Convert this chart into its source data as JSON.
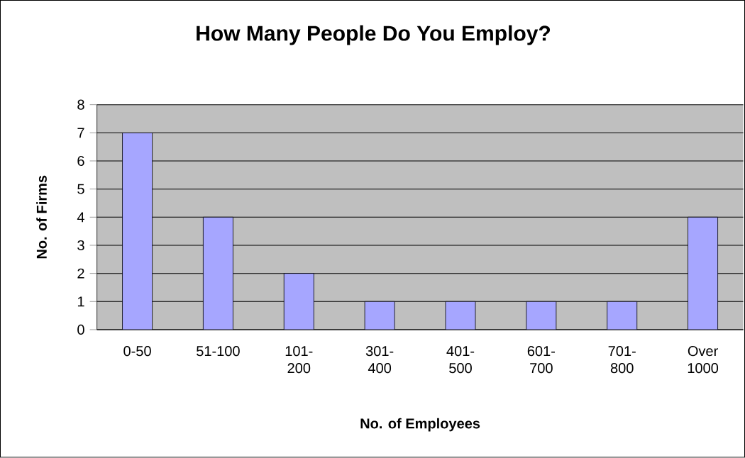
{
  "chart_data": {
    "type": "bar",
    "title": "How Many People Do You Employ?",
    "xlabel": "No. of Employees",
    "ylabel": "No. of Firms",
    "categories": [
      "0-50",
      "51-100",
      "101-200",
      "301-400",
      "401-500",
      "601-700",
      "701-800",
      "Over 1000"
    ],
    "values": [
      7,
      4,
      2,
      1,
      1,
      1,
      1,
      4
    ],
    "color": "#a6a6ff",
    "ylim": [
      0,
      8
    ],
    "yticks": [
      0,
      1,
      2,
      3,
      4,
      5,
      6,
      7,
      8
    ],
    "grid": "y"
  }
}
